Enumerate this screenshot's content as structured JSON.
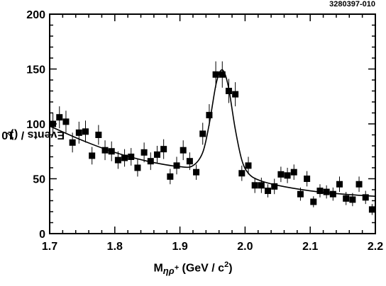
{
  "figure_tag": "3280397-010",
  "chart_data": {
    "type": "scatter",
    "xlabel": {
      "prefix": "M",
      "subscript": "ηρ",
      "subscript_charge": "+",
      "suffix": " (GeV / c",
      "suffix_sup": "2",
      "suffix_close": ")"
    },
    "ylabel": {
      "text": "Events / (10 MeV / c",
      "sup": "2",
      "close": ")"
    },
    "xlim": [
      1.7,
      2.2
    ],
    "ylim": [
      0,
      200
    ],
    "xticks": [
      1.7,
      1.8,
      1.9,
      2.0,
      2.1,
      2.2
    ],
    "xtick_labels": [
      "1.7",
      "1.8",
      "1.9",
      "2.0",
      "2.1",
      "2.2"
    ],
    "yticks": [
      0,
      50,
      100,
      150,
      200
    ],
    "ytick_labels": [
      "0",
      "50",
      "100",
      "150",
      "200"
    ],
    "grid": false,
    "series": [
      {
        "kind": "points_with_errors",
        "marker": "square",
        "x": [
          1.705,
          1.715,
          1.725,
          1.735,
          1.745,
          1.755,
          1.765,
          1.775,
          1.785,
          1.795,
          1.805,
          1.815,
          1.825,
          1.835,
          1.845,
          1.855,
          1.865,
          1.875,
          1.885,
          1.895,
          1.905,
          1.915,
          1.925,
          1.935,
          1.945,
          1.955,
          1.965,
          1.975,
          1.985,
          1.995,
          2.005,
          2.015,
          2.025,
          2.035,
          2.045,
          2.055,
          2.065,
          2.075,
          2.085,
          2.095,
          2.105,
          2.115,
          2.125,
          2.135,
          2.145,
          2.155,
          2.165,
          2.175,
          2.185,
          2.195
        ],
        "y": [
          100,
          106,
          102,
          83,
          92,
          93,
          71,
          90,
          76,
          75,
          67,
          69,
          70,
          60,
          74,
          66,
          72,
          77,
          52,
          62,
          76,
          66,
          56,
          91,
          108,
          145,
          145,
          130,
          127,
          55,
          62,
          44,
          44,
          39,
          43,
          54,
          53,
          56,
          36,
          50,
          29,
          39,
          38,
          36,
          45,
          32,
          31,
          45,
          33,
          22
        ],
        "yerr": [
          10,
          10,
          10,
          9,
          10,
          10,
          8,
          9,
          9,
          9,
          8,
          8,
          8,
          8,
          9,
          8,
          8,
          9,
          7,
          8,
          9,
          8,
          7,
          10,
          10,
          12,
          12,
          11,
          11,
          7,
          8,
          7,
          7,
          6,
          7,
          7,
          7,
          7,
          6,
          7,
          5,
          6,
          6,
          6,
          7,
          6,
          6,
          7,
          6,
          5
        ]
      },
      {
        "kind": "fit_curve",
        "x": [
          1.7,
          1.75,
          1.8,
          1.85,
          1.9,
          1.92,
          1.935,
          1.945,
          1.955,
          1.962,
          1.968,
          1.975,
          1.985,
          1.995,
          2.005,
          2.02,
          2.05,
          2.1,
          2.15,
          2.2
        ],
        "y": [
          98,
          85,
          74,
          66,
          61,
          62,
          74,
          100,
          135,
          148,
          147,
          132,
          95,
          67,
          55,
          49,
          44,
          39,
          36,
          34
        ]
      }
    ]
  }
}
